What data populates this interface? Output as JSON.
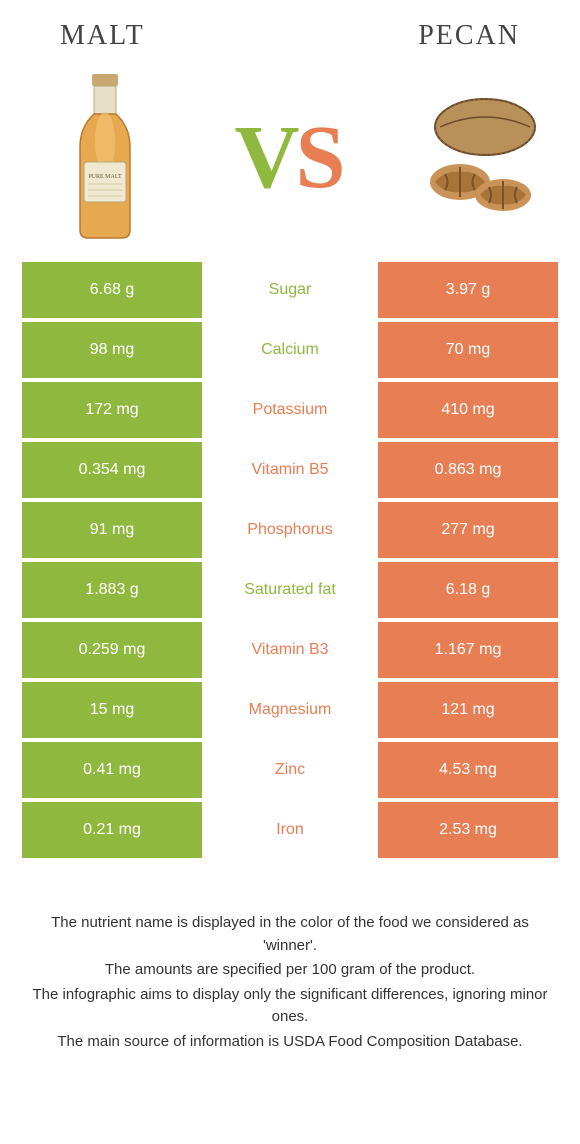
{
  "colors": {
    "left": "#8fb83f",
    "right": "#e87e53",
    "bg": "#ffffff"
  },
  "header": {
    "left_title": "Malt",
    "right_title": "Pecan"
  },
  "vs": {
    "v": "V",
    "s": "S"
  },
  "rows": [
    {
      "left": "6.68 g",
      "label": "Sugar",
      "right": "3.97 g",
      "winner": "left"
    },
    {
      "left": "98 mg",
      "label": "Calcium",
      "right": "70 mg",
      "winner": "left"
    },
    {
      "left": "172 mg",
      "label": "Potassium",
      "right": "410 mg",
      "winner": "right"
    },
    {
      "left": "0.354 mg",
      "label": "Vitamin B5",
      "right": "0.863 mg",
      "winner": "right"
    },
    {
      "left": "91 mg",
      "label": "Phosphorus",
      "right": "277 mg",
      "winner": "right"
    },
    {
      "left": "1.883 g",
      "label": "Saturated fat",
      "right": "6.18 g",
      "winner": "left"
    },
    {
      "left": "0.259 mg",
      "label": "Vitamin B3",
      "right": "1.167 mg",
      "winner": "right"
    },
    {
      "left": "15 mg",
      "label": "Magnesium",
      "right": "121 mg",
      "winner": "right"
    },
    {
      "left": "0.41 mg",
      "label": "Zinc",
      "right": "4.53 mg",
      "winner": "right"
    },
    {
      "left": "0.21 mg",
      "label": "Iron",
      "right": "2.53 mg",
      "winner": "right"
    }
  ],
  "footer": {
    "l1": "The nutrient name is displayed in the color of the food we considered as 'winner'.",
    "l2": "The amounts are specified per 100 gram of the product.",
    "l3": "The infographic aims to display only the significant differences, ignoring minor ones.",
    "l4": "The main source of information is USDA Food Composition Database."
  }
}
